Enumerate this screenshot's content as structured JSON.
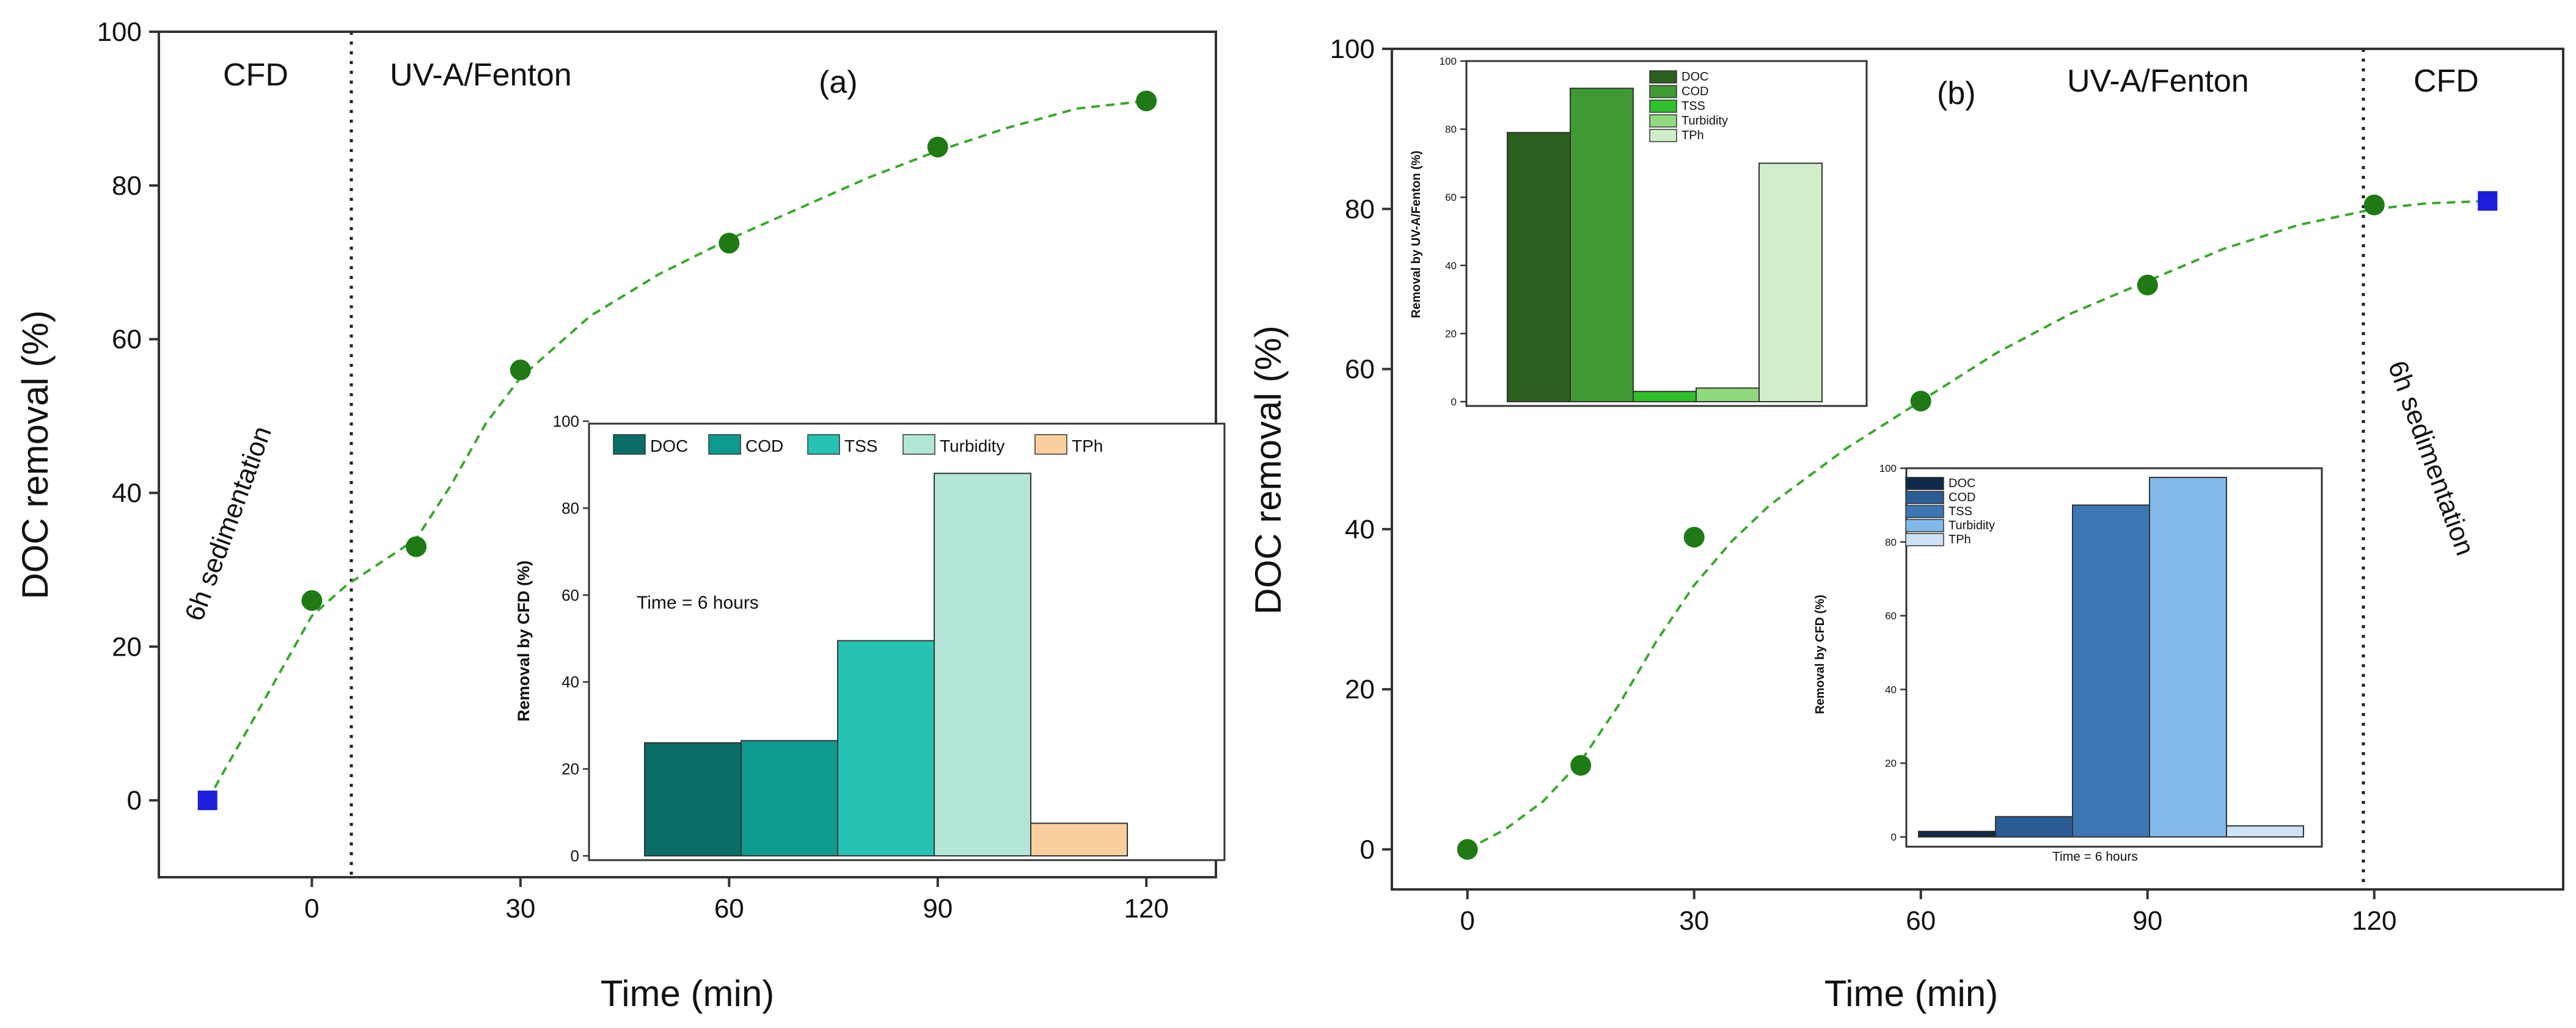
{
  "chart_data": [
    {
      "id": "a",
      "type": "scatter",
      "panel_label": "(a)",
      "xlabel": "Time (min)",
      "ylabel": "DOC removal (%)",
      "xlim": [
        -22,
        130
      ],
      "ylim": [
        -10,
        100
      ],
      "xticks": [
        0,
        30,
        60,
        90,
        120
      ],
      "yticks": [
        0,
        20,
        40,
        60,
        80,
        100
      ],
      "region_labels": {
        "left": "CFD",
        "right": "UV-A/Fenton"
      },
      "vertical_line_x": 0,
      "rotated_note": "6h sedimentation",
      "series": [
        {
          "name": "CFD",
          "marker": "square",
          "color": "#1d1ddb",
          "x": [
            -15
          ],
          "y": [
            0
          ]
        },
        {
          "name": "UV-A/Fenton",
          "marker": "circle",
          "color": "#1f7a16",
          "x": [
            0,
            15,
            30,
            60,
            90,
            120
          ],
          "y": [
            26,
            33,
            56,
            72.5,
            85,
            91
          ]
        }
      ],
      "fit_line": {
        "color": "#3aa82e",
        "x": [
          -15,
          -10,
          -5,
          0,
          5,
          10,
          15,
          20,
          25,
          30,
          40,
          50,
          60,
          70,
          80,
          90,
          100,
          110,
          120
        ],
        "y": [
          0,
          8,
          16,
          24,
          28,
          31,
          34,
          41,
          49,
          55,
          63,
          68.5,
          73,
          77,
          81,
          84.5,
          87.5,
          90,
          91
        ]
      },
      "inset": {
        "type": "bar",
        "ylabel": "Removal by CFD (%)",
        "ylim": [
          0,
          100
        ],
        "yticks": [
          0,
          20,
          40,
          60,
          80,
          100
        ],
        "note": "Time = 6 hours",
        "categories": [
          "DOC",
          "COD",
          "TSS",
          "Turbidity",
          "TPh"
        ],
        "values": [
          26,
          26.5,
          49.5,
          88,
          7.5
        ],
        "colors": [
          "#0a6e66",
          "#0e998e",
          "#26c2b4",
          "#b3e6d8",
          "#f9cf9f"
        ]
      }
    },
    {
      "id": "b",
      "type": "scatter",
      "panel_label": "(b)",
      "xlabel": "Time (min)",
      "ylabel": "DOC removal (%)",
      "xlim": [
        -10,
        145
      ],
      "ylim": [
        -5,
        100
      ],
      "xticks": [
        0,
        30,
        60,
        90,
        120
      ],
      "yticks": [
        0,
        20,
        40,
        60,
        80,
        100
      ],
      "region_labels": {
        "left": "UV-A/Fenton",
        "right": "CFD"
      },
      "vertical_line_x": 122,
      "rotated_note": "6h sedimentation",
      "series": [
        {
          "name": "UV-A/Fenton",
          "marker": "circle",
          "color": "#1f7a16",
          "x": [
            0,
            15,
            30,
            60,
            90,
            120
          ],
          "y": [
            0,
            10.5,
            39,
            56,
            70.5,
            80.5
          ]
        },
        {
          "name": "CFD",
          "marker": "square",
          "color": "#1d1ddb",
          "x": [
            135
          ],
          "y": [
            81
          ]
        }
      ],
      "fit_line": {
        "color": "#3aa82e",
        "x": [
          0,
          5,
          10,
          15,
          20,
          25,
          30,
          35,
          40,
          50,
          60,
          70,
          80,
          90,
          100,
          110,
          120,
          127,
          135
        ],
        "y": [
          0,
          2.5,
          6,
          11,
          18,
          26,
          33,
          38.5,
          43,
          50,
          56,
          62,
          67,
          71,
          75,
          78,
          80,
          80.7,
          81
        ]
      },
      "inset_top": {
        "type": "bar",
        "ylabel": "Removal by UV-A/Fenton (%)",
        "ylim": [
          0,
          100
        ],
        "yticks": [
          0,
          20,
          40,
          60,
          80,
          100
        ],
        "categories": [
          "DOC",
          "COD",
          "TSS",
          "Turbidity",
          "TPh"
        ],
        "values": [
          79,
          92,
          3,
          4,
          70
        ],
        "colors": [
          "#2b5e1f",
          "#3f9a33",
          "#2fc02c",
          "#8fd97f",
          "#d1eecb"
        ]
      },
      "inset_bottom": {
        "type": "bar",
        "ylabel": "Removal by CFD (%)",
        "ylim": [
          0,
          100
        ],
        "yticks": [
          0,
          20,
          40,
          60,
          80,
          100
        ],
        "note": "Time = 6 hours",
        "categories": [
          "DOC",
          "COD",
          "TSS",
          "Turbidity",
          "TPh"
        ],
        "values": [
          1.5,
          5.5,
          90,
          97.5,
          3
        ],
        "colors": [
          "#10294a",
          "#2b5c94",
          "#3c77b3",
          "#82b9e9",
          "#cde2f4"
        ]
      }
    }
  ]
}
